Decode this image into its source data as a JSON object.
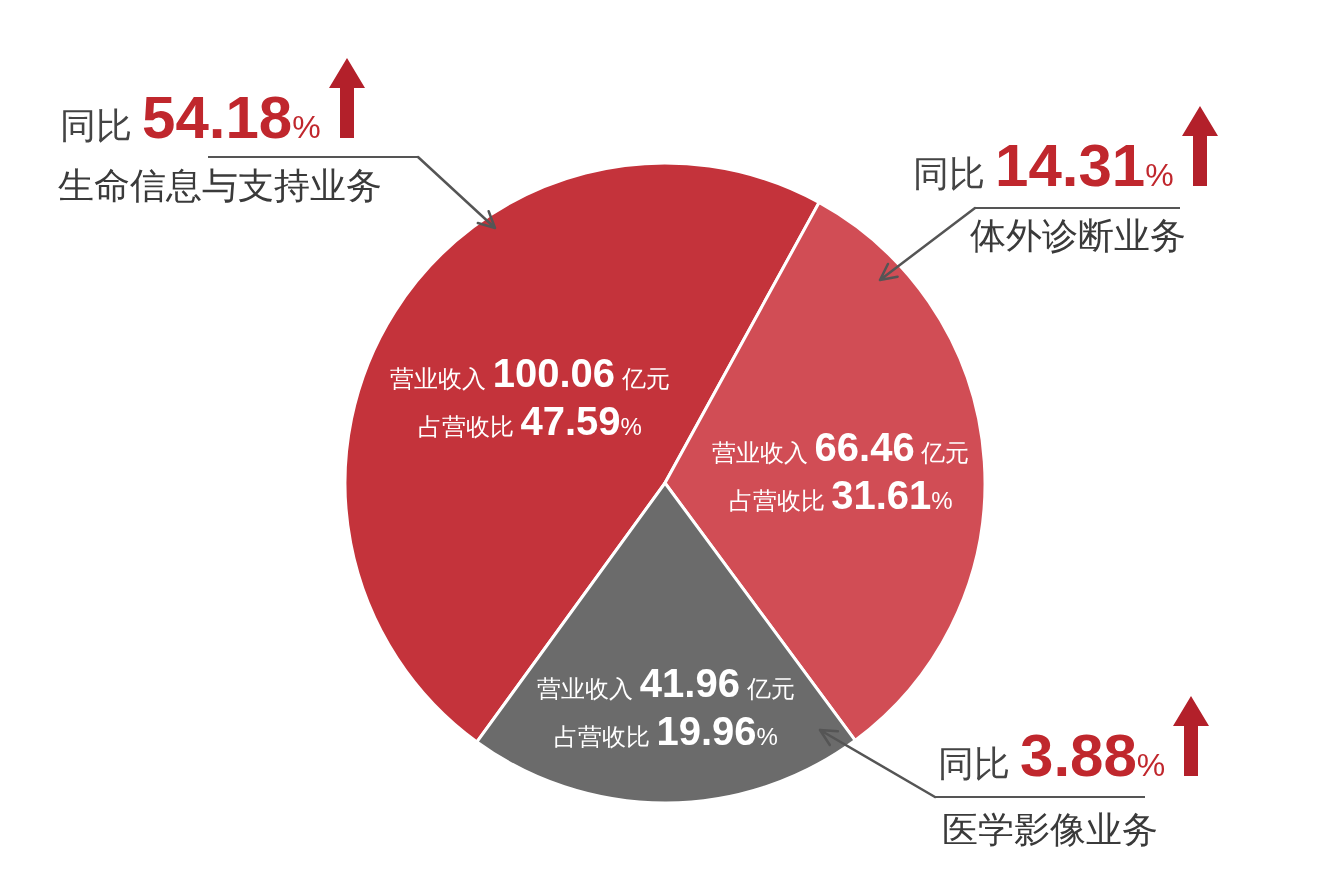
{
  "chart_data": {
    "type": "pie",
    "categories": [
      "生命信息与支持业务",
      "体外诊断业务",
      "医学影像业务"
    ],
    "values": [
      100.06,
      66.46,
      41.96
    ],
    "colors": [
      "#c4333b",
      "#d14d55",
      "#6b6b6b"
    ],
    "value_labels": [
      "营业收入 100.06 亿元",
      "营业收入 66.46 亿元",
      "营业收入 41.96 亿元"
    ],
    "annotations": [
      "同比 54.18%",
      "同比 14.31%",
      "同比 3.88%",
      "占营收比 47.59%",
      "占营收比 31.61%",
      "占营收比 19.96%"
    ]
  }
}
